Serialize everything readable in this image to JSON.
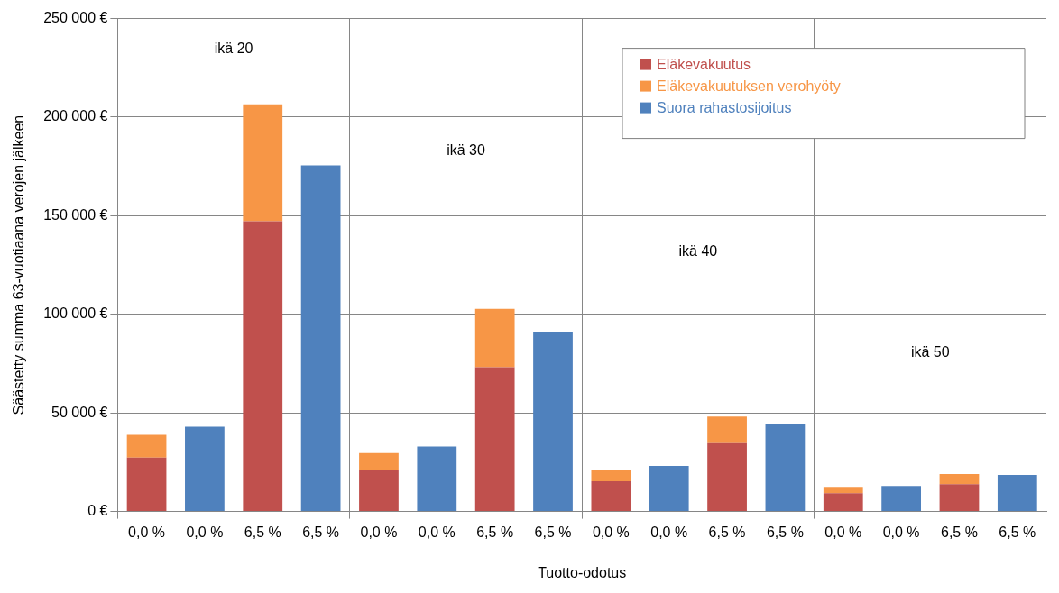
{
  "chart_data": {
    "type": "bar",
    "stacked": true,
    "xlabel": "Tuotto-odotus",
    "ylabel": "Säästetty summa 63-vuotiaana verojen jälkeen",
    "categories": [
      "0,0 %",
      "0,0 %",
      "6,5 %",
      "6,5 %",
      "0,0 %",
      "0,0 %",
      "6,5 %",
      "6,5 %",
      "0,0 %",
      "0,0 %",
      "6,5 %",
      "6,5 %",
      "0,0 %",
      "0,0 %",
      "6,5 %",
      "6,5 %"
    ],
    "series": [
      {
        "name": "Eläkevakuutus",
        "color": "#c0504d",
        "values": [
          27300,
          null,
          147200,
          null,
          21300,
          null,
          73200,
          null,
          15300,
          null,
          34700,
          null,
          9300,
          null,
          13900,
          null
        ]
      },
      {
        "name": "Eläkevakuutuksen verohyöty",
        "color": "#f79646",
        "values": [
          11600,
          null,
          59300,
          null,
          8300,
          null,
          29600,
          null,
          6000,
          null,
          13400,
          null,
          3200,
          null,
          5100,
          null
        ]
      },
      {
        "name": "Suora rahastosijoitus",
        "color": "#4f81bd",
        "values": [
          null,
          43000,
          null,
          175500,
          null,
          32900,
          null,
          91200,
          null,
          23100,
          null,
          44400,
          null,
          13000,
          null,
          18500
        ]
      }
    ],
    "ylim": [
      0,
      250000
    ],
    "yticks": [
      {
        "value": 0,
        "label": "0 €"
      },
      {
        "value": 50000,
        "label": "50 000 €"
      },
      {
        "value": 100000,
        "label": "100 000 €"
      },
      {
        "value": 150000,
        "label": "150 000 €"
      },
      {
        "value": 200000,
        "label": "200 000 €"
      },
      {
        "value": 250000,
        "label": "250 000 €"
      }
    ],
    "grid": true,
    "legend": "top right",
    "annotations": [
      "ikä 20",
      "ikä 30",
      "ikä 40",
      "ikä 50"
    ]
  }
}
